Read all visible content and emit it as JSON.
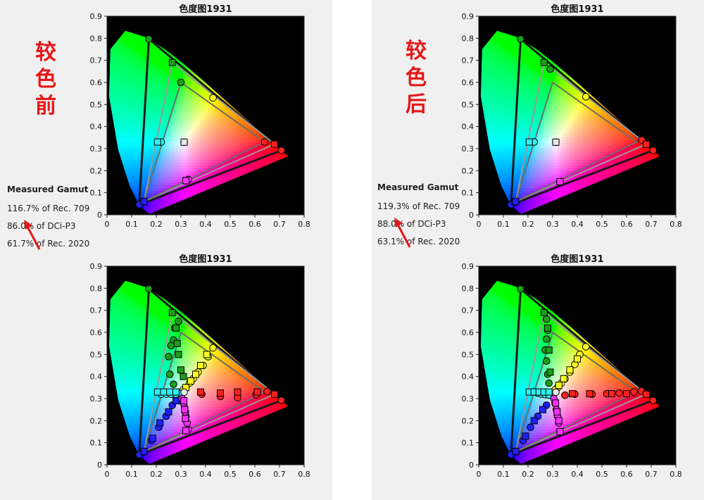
{
  "colors": {
    "red": "#ff2020",
    "green": "#1b9e1b",
    "blue": "#2020ff",
    "yellow": "#ffff20",
    "cyan": "#30f0f0",
    "magenta": "#ff30ff",
    "white": "#e8e8e8",
    "label_red": "#e51717"
  },
  "icons": {
    "annotation": "red-arrow-icon"
  },
  "panels": [
    {
      "label_chars": [
        "较",
        "色",
        "前"
      ],
      "gamut": {
        "heading": "Measured Gamut",
        "lines": [
          "116.7% of Rec. 709",
          "86.0% of DCi-P3",
          "61.7% of Rec. 2020"
        ]
      }
    },
    {
      "label_chars": [
        "较",
        "色",
        "后"
      ],
      "gamut": {
        "heading": "Measured Gamut",
        "lines": [
          "119.3% of Rec. 709",
          "88.0% of DCi-P3",
          "63.1% of Rec. 2020"
        ]
      }
    }
  ],
  "chart_data": [
    {
      "type": "scatter",
      "title": "色度图1931",
      "xlim": [
        0,
        0.8
      ],
      "ylim": [
        0,
        0.9
      ],
      "xticks": [
        "0",
        "0.1",
        "0.2",
        "0.3",
        "0.4",
        "0.5",
        "0.6",
        "0.7",
        "0.8"
      ],
      "yticks": [
        "0",
        "0.1",
        "0.2",
        "0.3",
        "0.4",
        "0.5",
        "0.6",
        "0.7",
        "0.8",
        "0.9"
      ],
      "gamut_triangles": [
        {
          "name": "Rec. 2020",
          "points": [
            [
              0.708,
              0.292
            ],
            [
              0.17,
              0.797
            ],
            [
              0.131,
              0.046
            ]
          ]
        },
        {
          "name": "DCi-P3",
          "points": [
            [
              0.68,
              0.32
            ],
            [
              0.265,
              0.69
            ],
            [
              0.15,
              0.06
            ]
          ]
        },
        {
          "name": "Rec. 709",
          "points": [
            [
              0.64,
              0.33
            ],
            [
              0.3,
              0.6
            ],
            [
              0.15,
              0.06
            ]
          ]
        }
      ],
      "series": [
        {
          "color": "red",
          "marker": "circle",
          "x": [
            0.708,
            0.64
          ],
          "y": [
            0.292,
            0.33
          ]
        },
        {
          "color": "red",
          "marker": "square",
          "x": [
            0.68
          ],
          "y": [
            0.32
          ]
        },
        {
          "color": "green",
          "marker": "circle",
          "x": [
            0.17,
            0.3
          ],
          "y": [
            0.797,
            0.6
          ]
        },
        {
          "color": "green",
          "marker": "square",
          "x": [
            0.265
          ],
          "y": [
            0.69
          ]
        },
        {
          "color": "blue",
          "marker": "circle",
          "x": [
            0.131,
            0.15
          ],
          "y": [
            0.046,
            0.06
          ]
        },
        {
          "color": "blue",
          "marker": "square",
          "x": [
            0.15
          ],
          "y": [
            0.06
          ]
        },
        {
          "color": "yellow",
          "marker": "circle",
          "x": [
            0.43
          ],
          "y": [
            0.53
          ]
        },
        {
          "color": "cyan",
          "marker": "circle",
          "x": [
            0.22
          ],
          "y": [
            0.33
          ]
        },
        {
          "color": "cyan",
          "marker": "square",
          "x": [
            0.205
          ],
          "y": [
            0.33
          ]
        },
        {
          "color": "magenta",
          "marker": "circle",
          "x": [
            0.33
          ],
          "y": [
            0.16
          ]
        },
        {
          "color": "magenta",
          "marker": "square",
          "x": [
            0.32
          ],
          "y": [
            0.155
          ]
        },
        {
          "color": "white",
          "marker": "circle",
          "x": [
            0.313
          ],
          "y": [
            0.329
          ]
        },
        {
          "color": "white",
          "marker": "square",
          "x": [
            0.313
          ],
          "y": [
            0.329
          ]
        }
      ]
    },
    {
      "type": "scatter",
      "title": "色度图1931",
      "xlim": [
        0,
        0.8
      ],
      "ylim": [
        0,
        0.9
      ],
      "xticks": [
        "0",
        "0.1",
        "0.2",
        "0.3",
        "0.4",
        "0.5",
        "0.6",
        "0.7",
        "0.8"
      ],
      "yticks": [
        "0",
        "0.1",
        "0.2",
        "0.3",
        "0.4",
        "0.5",
        "0.6",
        "0.7",
        "0.8",
        "0.9"
      ],
      "gamut_triangles": [
        {
          "name": "Rec. 2020",
          "points": [
            [
              0.708,
              0.292
            ],
            [
              0.17,
              0.797
            ],
            [
              0.131,
              0.046
            ]
          ]
        },
        {
          "name": "DCi-P3",
          "points": [
            [
              0.68,
              0.32
            ],
            [
              0.265,
              0.69
            ],
            [
              0.15,
              0.06
            ]
          ]
        },
        {
          "name": "Rec. 709",
          "points": [
            [
              0.64,
              0.33
            ],
            [
              0.3,
              0.6
            ],
            [
              0.15,
              0.06
            ]
          ]
        }
      ],
      "series": [
        {
          "color": "red",
          "marker": "circle",
          "x": [
            0.708,
            0.662
          ],
          "y": [
            0.292,
            0.339
          ]
        },
        {
          "color": "red",
          "marker": "square",
          "x": [
            0.68
          ],
          "y": [
            0.32
          ]
        },
        {
          "color": "green",
          "marker": "circle",
          "x": [
            0.17,
            0.29
          ],
          "y": [
            0.797,
            0.66
          ]
        },
        {
          "color": "green",
          "marker": "square",
          "x": [
            0.265
          ],
          "y": [
            0.69
          ]
        },
        {
          "color": "blue",
          "marker": "circle",
          "x": [
            0.131,
            0.145
          ],
          "y": [
            0.046,
            0.055
          ]
        },
        {
          "color": "blue",
          "marker": "square",
          "x": [
            0.15
          ],
          "y": [
            0.06
          ]
        },
        {
          "color": "yellow",
          "marker": "circle",
          "x": [
            0.435
          ],
          "y": [
            0.535
          ]
        },
        {
          "color": "cyan",
          "marker": "circle",
          "x": [
            0.225
          ],
          "y": [
            0.33
          ]
        },
        {
          "color": "cyan",
          "marker": "square",
          "x": [
            0.205
          ],
          "y": [
            0.33
          ]
        },
        {
          "color": "magenta",
          "marker": "circle",
          "x": [
            0.33
          ],
          "y": [
            0.15
          ]
        },
        {
          "color": "magenta",
          "marker": "square",
          "x": [
            0.33
          ],
          "y": [
            0.15
          ]
        },
        {
          "color": "white",
          "marker": "circle",
          "x": [
            0.313
          ],
          "y": [
            0.329
          ]
        },
        {
          "color": "white",
          "marker": "square",
          "x": [
            0.313
          ],
          "y": [
            0.329
          ]
        }
      ]
    },
    {
      "type": "scatter",
      "title": "色度图1931",
      "xlim": [
        0,
        0.8
      ],
      "ylim": [
        0,
        0.9
      ],
      "xticks": [
        "0",
        "0.1",
        "0.2",
        "0.3",
        "0.4",
        "0.5",
        "0.6",
        "0.7",
        "0.8"
      ],
      "yticks": [
        "0",
        "0.1",
        "0.2",
        "0.3",
        "0.4",
        "0.5",
        "0.6",
        "0.7",
        "0.8",
        "0.9"
      ],
      "gamut_triangles": [
        {
          "name": "Rec. 2020",
          "points": [
            [
              0.708,
              0.292
            ],
            [
              0.17,
              0.797
            ],
            [
              0.131,
              0.046
            ]
          ]
        },
        {
          "name": "DCi-P3",
          "points": [
            [
              0.68,
              0.32
            ],
            [
              0.265,
              0.69
            ],
            [
              0.15,
              0.06
            ]
          ]
        },
        {
          "name": "Rec. 709",
          "points": [
            [
              0.64,
              0.33
            ],
            [
              0.3,
              0.6
            ],
            [
              0.15,
              0.06
            ]
          ]
        }
      ],
      "series": [
        {
          "color": "red",
          "marker": "circle",
          "x": [
            0.708,
            0.65,
            0.605,
            0.53,
            0.46,
            0.385
          ],
          "y": [
            0.292,
            0.332,
            0.318,
            0.304,
            0.31,
            0.32
          ]
        },
        {
          "color": "red",
          "marker": "square",
          "x": [
            0.68,
            0.61,
            0.53,
            0.46,
            0.38
          ],
          "y": [
            0.32,
            0.33,
            0.33,
            0.325,
            0.33
          ]
        },
        {
          "color": "green",
          "marker": "circle",
          "x": [
            0.17,
            0.29,
            0.275,
            0.27,
            0.26,
            0.25,
            0.255,
            0.27
          ],
          "y": [
            0.797,
            0.65,
            0.62,
            0.565,
            0.54,
            0.49,
            0.41,
            0.365
          ]
        },
        {
          "color": "green",
          "marker": "square",
          "x": [
            0.265,
            0.28,
            0.285,
            0.29,
            0.3,
            0.31
          ],
          "y": [
            0.69,
            0.62,
            0.55,
            0.5,
            0.43,
            0.4
          ]
        },
        {
          "color": "blue",
          "marker": "circle",
          "x": [
            0.131,
            0.15,
            0.18,
            0.21,
            0.24,
            0.265
          ],
          "y": [
            0.046,
            0.06,
            0.11,
            0.17,
            0.22,
            0.27
          ]
        },
        {
          "color": "blue",
          "marker": "square",
          "x": [
            0.15,
            0.185,
            0.215,
            0.25,
            0.28
          ],
          "y": [
            0.06,
            0.12,
            0.19,
            0.24,
            0.29
          ]
        },
        {
          "color": "yellow",
          "marker": "circle",
          "x": [
            0.43,
            0.41,
            0.39,
            0.37,
            0.35,
            0.335,
            0.32,
            0.31
          ],
          "y": [
            0.53,
            0.49,
            0.45,
            0.42,
            0.39,
            0.37,
            0.35,
            0.34
          ]
        },
        {
          "color": "yellow",
          "marker": "square",
          "x": [
            0.405,
            0.38,
            0.36,
            0.34,
            0.32
          ],
          "y": [
            0.5,
            0.45,
            0.41,
            0.38,
            0.35
          ]
        },
        {
          "color": "cyan",
          "marker": "circle",
          "x": [
            0.22,
            0.24,
            0.26,
            0.28,
            0.3
          ],
          "y": [
            0.32,
            0.32,
            0.32,
            0.32,
            0.322
          ]
        },
        {
          "color": "cyan",
          "marker": "square",
          "x": [
            0.205,
            0.23,
            0.255,
            0.28
          ],
          "y": [
            0.33,
            0.33,
            0.33,
            0.33
          ]
        },
        {
          "color": "magenta",
          "marker": "circle",
          "x": [
            0.33,
            0.325,
            0.32,
            0.318,
            0.315,
            0.31,
            0.305
          ],
          "y": [
            0.16,
            0.19,
            0.22,
            0.24,
            0.26,
            0.28,
            0.3
          ]
        },
        {
          "color": "magenta",
          "marker": "square",
          "x": [
            0.32,
            0.318,
            0.315,
            0.312
          ],
          "y": [
            0.155,
            0.21,
            0.25,
            0.29
          ]
        },
        {
          "color": "white",
          "marker": "circle",
          "x": [
            0.313
          ],
          "y": [
            0.329
          ]
        }
      ]
    },
    {
      "type": "scatter",
      "title": "色度图1931",
      "xlim": [
        0,
        0.8
      ],
      "ylim": [
        0,
        0.9
      ],
      "xticks": [
        "0",
        "0.1",
        "0.2",
        "0.3",
        "0.4",
        "0.5",
        "0.6",
        "0.7",
        "0.8"
      ],
      "yticks": [
        "0",
        "0.1",
        "0.2",
        "0.3",
        "0.4",
        "0.5",
        "0.6",
        "0.7",
        "0.8",
        "0.9"
      ],
      "gamut_triangles": [
        {
          "name": "Rec. 2020",
          "points": [
            [
              0.708,
              0.292
            ],
            [
              0.17,
              0.797
            ],
            [
              0.131,
              0.046
            ]
          ]
        },
        {
          "name": "DCi-P3",
          "points": [
            [
              0.68,
              0.32
            ],
            [
              0.265,
              0.69
            ],
            [
              0.15,
              0.06
            ]
          ]
        },
        {
          "name": "Rec. 709",
          "points": [
            [
              0.64,
              0.33
            ],
            [
              0.3,
              0.6
            ],
            [
              0.15,
              0.06
            ]
          ]
        }
      ],
      "series": [
        {
          "color": "red",
          "marker": "circle",
          "x": [
            0.708,
            0.66,
            0.63,
            0.57,
            0.52,
            0.46,
            0.39,
            0.35
          ],
          "y": [
            0.292,
            0.335,
            0.33,
            0.325,
            0.322,
            0.32,
            0.32,
            0.315
          ]
        },
        {
          "color": "red",
          "marker": "square",
          "x": [
            0.68,
            0.6,
            0.54,
            0.45,
            0.38
          ],
          "y": [
            0.32,
            0.322,
            0.322,
            0.322,
            0.322
          ]
        },
        {
          "color": "green",
          "marker": "circle",
          "x": [
            0.17,
            0.275,
            0.28,
            0.275,
            0.27,
            0.275,
            0.28,
            0.285
          ],
          "y": [
            0.797,
            0.66,
            0.61,
            0.57,
            0.52,
            0.47,
            0.41,
            0.37
          ]
        },
        {
          "color": "green",
          "marker": "square",
          "x": [
            0.265,
            0.28,
            0.285,
            0.29
          ],
          "y": [
            0.69,
            0.62,
            0.52,
            0.42
          ]
        },
        {
          "color": "blue",
          "marker": "circle",
          "x": [
            0.131,
            0.15,
            0.18,
            0.21,
            0.24,
            0.275
          ],
          "y": [
            0.046,
            0.06,
            0.11,
            0.17,
            0.22,
            0.27
          ]
        },
        {
          "color": "blue",
          "marker": "square",
          "x": [
            0.15,
            0.19,
            0.225,
            0.26
          ],
          "y": [
            0.06,
            0.13,
            0.2,
            0.25
          ]
        },
        {
          "color": "yellow",
          "marker": "circle",
          "x": [
            0.435,
            0.41,
            0.39,
            0.37,
            0.35,
            0.335,
            0.32,
            0.31
          ],
          "y": [
            0.535,
            0.5,
            0.455,
            0.42,
            0.39,
            0.37,
            0.35,
            0.34
          ]
        },
        {
          "color": "yellow",
          "marker": "square",
          "x": [
            0.4,
            0.37,
            0.345,
            0.325
          ],
          "y": [
            0.48,
            0.43,
            0.39,
            0.36
          ]
        },
        {
          "color": "cyan",
          "marker": "circle",
          "x": [
            0.225,
            0.24,
            0.255,
            0.27,
            0.285
          ],
          "y": [
            0.33,
            0.325,
            0.32,
            0.318,
            0.316
          ]
        },
        {
          "color": "cyan",
          "marker": "square",
          "x": [
            0.205,
            0.225,
            0.245,
            0.265,
            0.285
          ],
          "y": [
            0.33,
            0.33,
            0.33,
            0.33,
            0.33
          ]
        },
        {
          "color": "magenta",
          "marker": "circle",
          "x": [
            0.33,
            0.325,
            0.32,
            0.315,
            0.31,
            0.305
          ],
          "y": [
            0.15,
            0.19,
            0.22,
            0.25,
            0.28,
            0.3
          ]
        },
        {
          "color": "magenta",
          "marker": "square",
          "x": [
            0.33,
            0.325,
            0.318,
            0.312
          ],
          "y": [
            0.15,
            0.2,
            0.24,
            0.28
          ]
        },
        {
          "color": "white",
          "marker": "circle",
          "x": [
            0.313
          ],
          "y": [
            0.329
          ]
        }
      ]
    }
  ]
}
